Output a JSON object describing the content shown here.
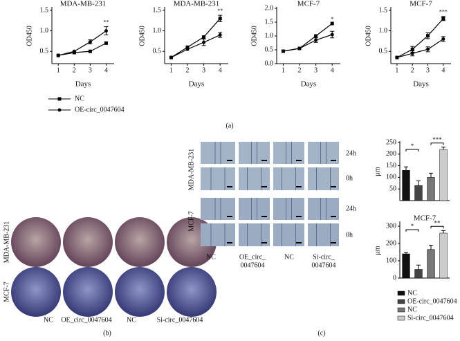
{
  "chart_data": [
    {
      "type": "line",
      "title": "MDA-MB-231",
      "xlabel": "Days",
      "ylabel": "OD450",
      "x": [
        1,
        2,
        3,
        4
      ],
      "xlim": [
        0.6,
        4.5
      ],
      "xticks": [
        1,
        2,
        3,
        4
      ],
      "ylim": [
        0.2,
        1.55
      ],
      "yticks": [
        0.5,
        {
          "value": 1,
          "label": "1.0"
        },
        1.5
      ],
      "series": [
        {
          "name": "NC",
          "color": "#000000",
          "marker": "square",
          "values": [
            0.4,
            0.47,
            0.5,
            0.7
          ],
          "errors": [
            null,
            null,
            null,
            null
          ]
        },
        {
          "name": "OE-circ_0047604",
          "color": "#000000",
          "marker": "circle",
          "values": [
            0.4,
            0.5,
            0.73,
            1.0
          ],
          "errors": [
            null,
            null,
            0.05,
            0.1
          ]
        }
      ],
      "annotations": [
        "**"
      ]
    },
    {
      "type": "line",
      "title": "MDA-MB-231",
      "xlabel": "Days",
      "ylabel": "OD450",
      "x": [
        1,
        2,
        3,
        4
      ],
      "xlim": [
        0.6,
        4.5
      ],
      "xticks": [
        1,
        2,
        3,
        4
      ],
      "ylim": [
        0.2,
        1.55
      ],
      "yticks": [
        0.5,
        {
          "value": 1,
          "label": "1.0"
        },
        1.5
      ],
      "series": [
        {
          "color": "#000000",
          "marker": "square",
          "values": [
            0.35,
            0.6,
            0.85,
            1.3
          ],
          "errors": [
            null,
            null,
            null,
            0.08
          ]
        },
        {
          "color": "#000000",
          "marker": "circle",
          "values": [
            0.35,
            0.55,
            0.72,
            0.9
          ],
          "errors": [
            null,
            null,
            0.08,
            0.06
          ]
        }
      ],
      "annotations": [
        "**"
      ]
    },
    {
      "type": "line",
      "title": "MCF-7",
      "xlabel": "Days",
      "ylabel": "OD450",
      "x": [
        1,
        2,
        3,
        4
      ],
      "xlim": [
        0.6,
        4.5
      ],
      "xticks": [
        1,
        2,
        3,
        4
      ],
      "ylim": [
        0,
        2
      ],
      "yticks": [
        {
          "value": 0,
          "label": "0.0"
        },
        0.5,
        {
          "value": 1,
          "label": "1.0"
        },
        1.5,
        {
          "value": 2,
          "label": "2.0"
        }
      ],
      "series": [
        {
          "color": "#000000",
          "marker": "square",
          "values": [
            0.45,
            0.55,
            1.0,
            1.45
          ],
          "errors": [
            null,
            null,
            null,
            null
          ]
        },
        {
          "color": "#000000",
          "marker": "circle",
          "values": [
            0.45,
            0.55,
            0.85,
            1.05
          ],
          "errors": [
            null,
            null,
            0.08,
            0.12
          ]
        }
      ],
      "annotations": [
        "*"
      ]
    },
    {
      "type": "line",
      "title": "MCF-7",
      "xlabel": "Days",
      "ylabel": "OD450",
      "x": [
        1,
        2,
        3,
        4
      ],
      "xlim": [
        0.6,
        4.5
      ],
      "xticks": [
        1,
        2,
        3,
        4
      ],
      "ylim": [
        0.2,
        1.55
      ],
      "yticks": [
        0.5,
        {
          "value": 1,
          "label": "1.0"
        },
        1.5
      ],
      "series": [
        {
          "color": "#000000",
          "marker": "square",
          "values": [
            0.35,
            0.55,
            0.88,
            1.3
          ],
          "errors": [
            null,
            0.07,
            0.07,
            0.05
          ]
        },
        {
          "color": "#000000",
          "marker": "circle",
          "values": [
            0.35,
            0.45,
            0.55,
            0.8
          ],
          "errors": [
            null,
            0.06,
            0.06,
            0.06
          ]
        }
      ],
      "annotations": [
        "***"
      ]
    },
    {
      "type": "bar",
      "ylabel": "μm",
      "ylim": [
        0,
        250
      ],
      "yticks": [
        50,
        100,
        150,
        200,
        250
      ],
      "series": [
        {
          "color": "#111111",
          "values": [
            130
          ],
          "errors": [
            15
          ]
        },
        {
          "color": "#444444",
          "values": [
            65
          ],
          "errors": [
            20
          ]
        },
        {
          "color": "#777777",
          "values": [
            100
          ],
          "errors": [
            18
          ]
        },
        {
          "color": "#cccccc",
          "values": [
            220
          ],
          "errors": [
            10
          ]
        }
      ],
      "annotations": [
        "*",
        "***"
      ]
    },
    {
      "type": "bar",
      "title": "MCF-7",
      "ylabel": "μm",
      "ylim": [
        0,
        320
      ],
      "yticks": [
        0,
        100,
        200,
        300
      ],
      "series": [
        {
          "name": "NC",
          "color": "#111111",
          "values": [
            140
          ],
          "errors": [
            8
          ]
        },
        {
          "name": "OE-circ_0047604",
          "color": "#444444",
          "values": [
            50
          ],
          "errors": [
            25
          ]
        },
        {
          "name": "NC",
          "color": "#777777",
          "values": [
            165
          ],
          "errors": [
            25
          ]
        },
        {
          "name": "Si-circ_0047604",
          "color": "#cccccc",
          "values": [
            260
          ],
          "errors": [
            15
          ]
        }
      ],
      "annotations": [
        "*",
        "**"
      ]
    }
  ],
  "panel_a": {
    "caption": "(a)"
  },
  "panel_b": {
    "caption": "(b)",
    "row_labels": [
      "MDA-MB-231",
      "MCF-7"
    ],
    "col_labels": [
      "NC",
      "OE_circ_0047604",
      "NC",
      "Si-circ_0047604"
    ]
  },
  "panel_c": {
    "caption": "(c)",
    "row_labels": [
      "MDA-MB-231",
      "MCF-7"
    ],
    "time_labels": [
      "24h",
      "0h",
      "24h",
      "0h"
    ],
    "col_labels": [
      [
        "NC"
      ],
      [
        "OE_circ_",
        "0047604"
      ],
      [
        "NC"
      ],
      [
        "Si-circ_",
        "0047604"
      ]
    ]
  }
}
